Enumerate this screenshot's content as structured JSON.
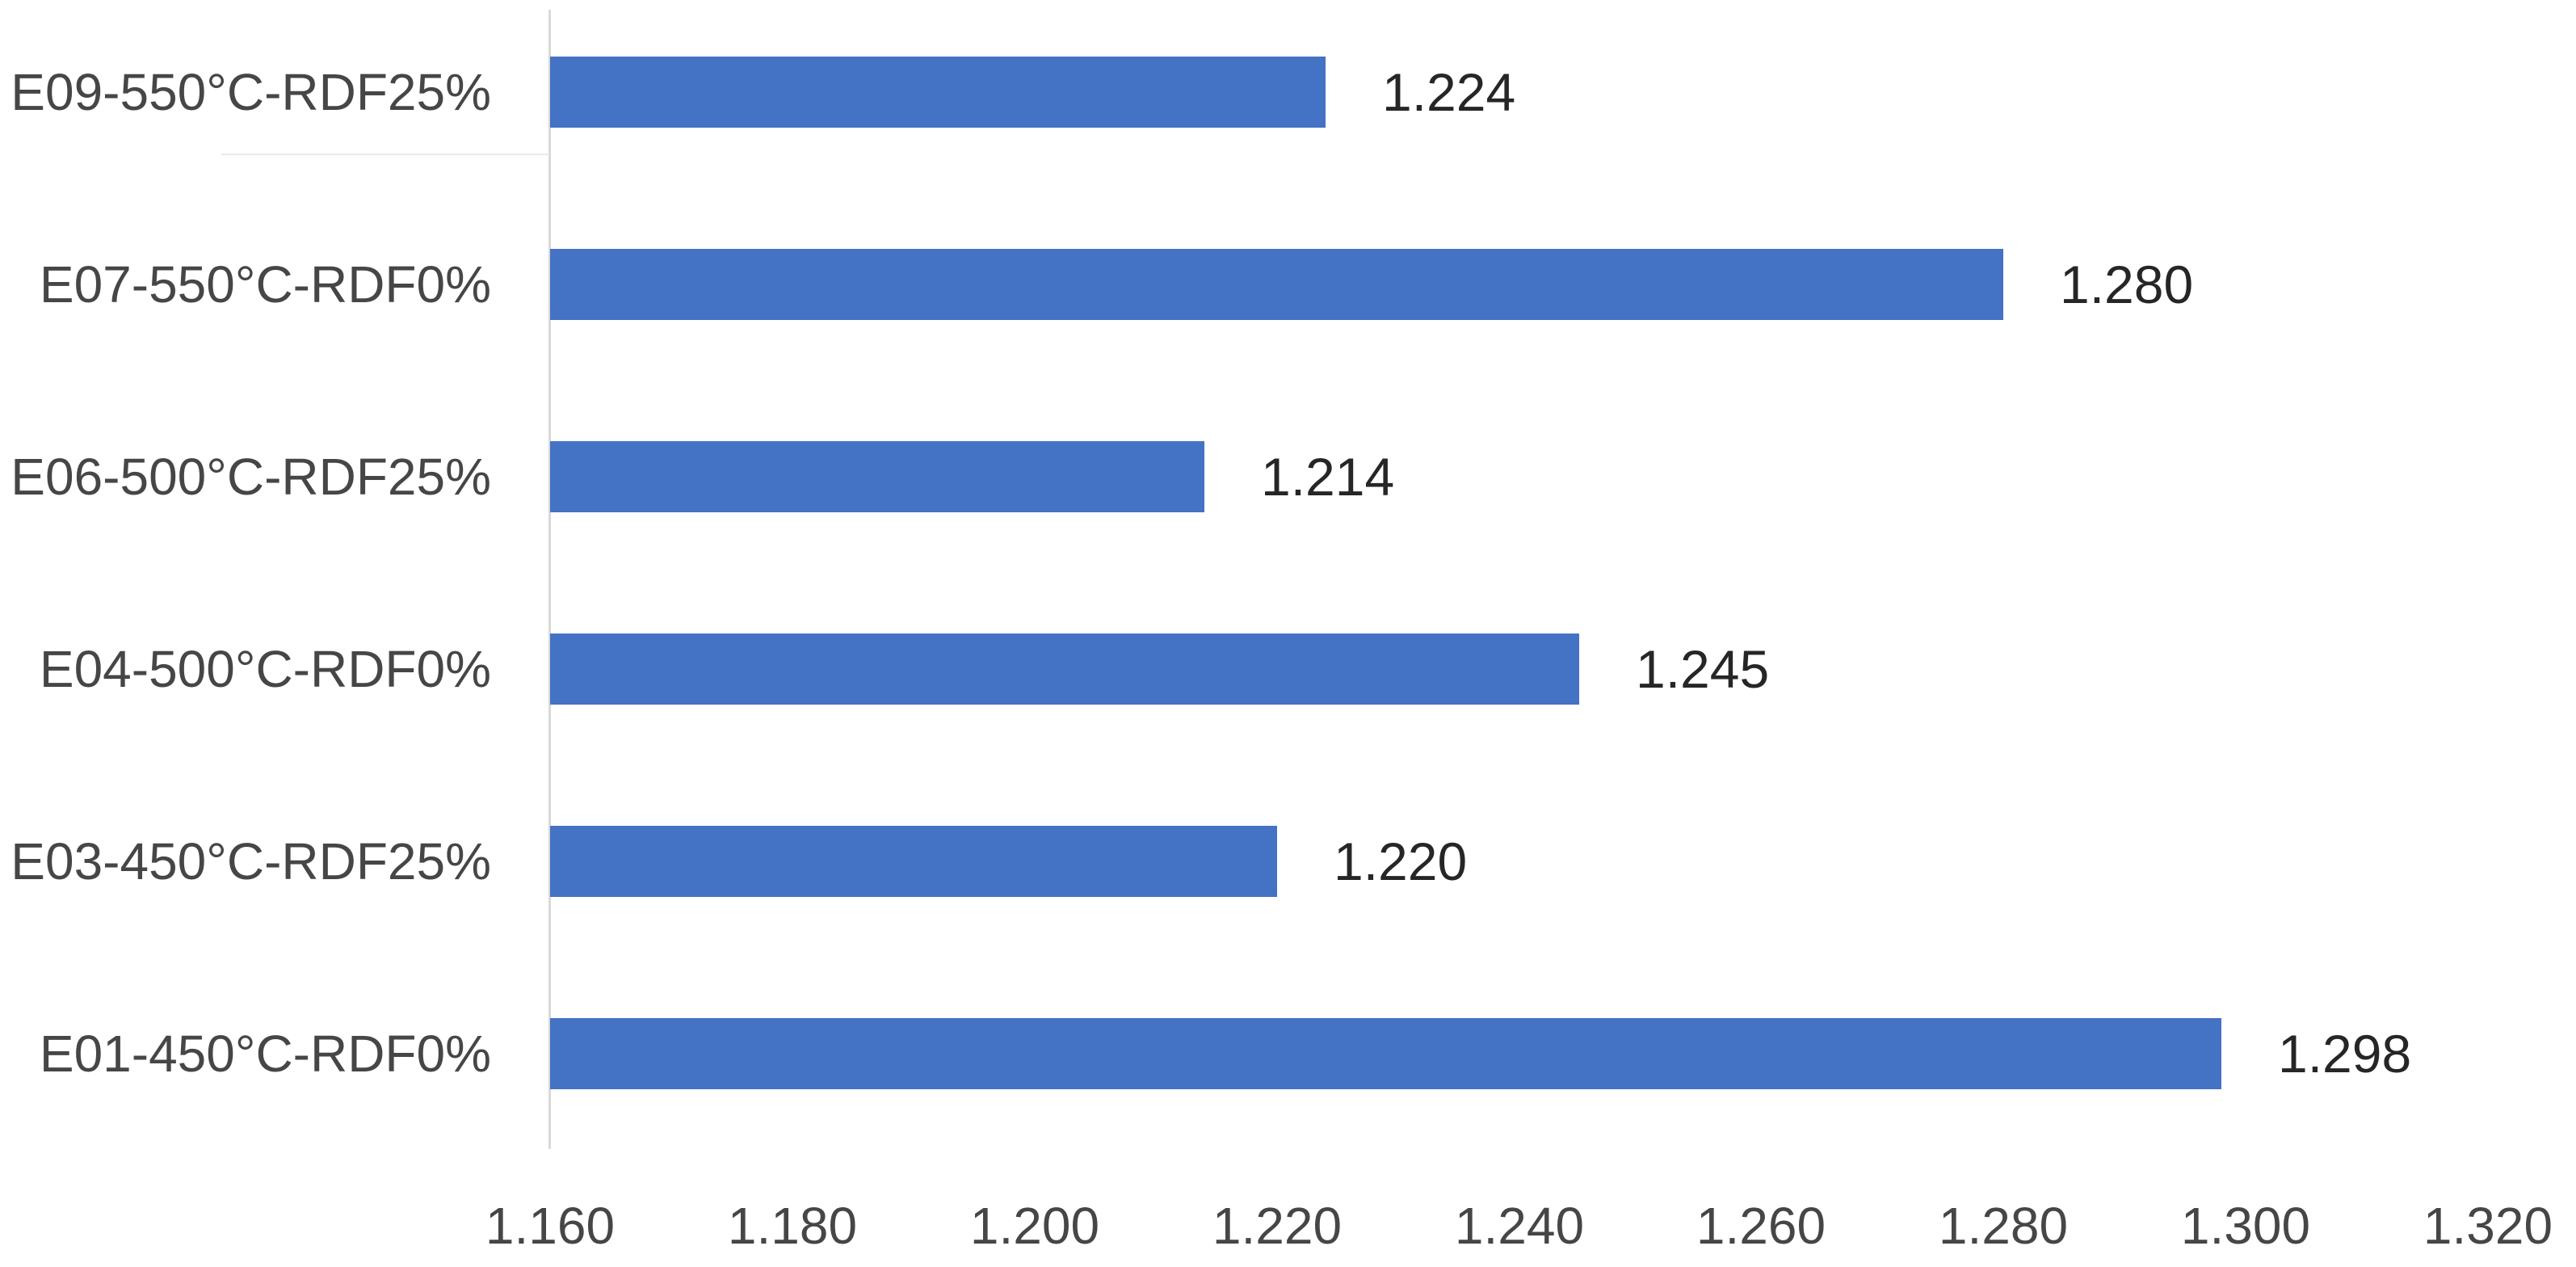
{
  "chart_data": {
    "type": "bar",
    "orientation": "horizontal",
    "title": "",
    "xlabel": "",
    "ylabel": "",
    "categories": [
      "E09-550°C-RDF25%",
      "E07-550°C-RDF0%",
      "E06-500°C-RDF25%",
      "E04-500°C-RDF0%",
      "E03-450°C-RDF25%",
      "E01-450°C-RDF0%"
    ],
    "values": [
      1.224,
      1.28,
      1.214,
      1.245,
      1.22,
      1.298
    ],
    "value_labels": [
      "1.224",
      "1.280",
      "1.214",
      "1.245",
      "1.220",
      "1.298"
    ],
    "x_ticks": [
      "1.160",
      "1.180",
      "1.200",
      "1.220",
      "1.240",
      "1.260",
      "1.280",
      "1.300",
      "1.320"
    ],
    "x_tick_values": [
      1.16,
      1.18,
      1.2,
      1.22,
      1.24,
      1.26,
      1.28,
      1.3,
      1.32
    ],
    "xlim": [
      1.16,
      1.32
    ],
    "grid": false,
    "legend": false,
    "bar_color": "#4472C4",
    "axis_line_color": "#D9D9D9",
    "category_label_color": "#464646",
    "tick_label_color": "#464646",
    "data_label_color": "#262626",
    "background": "#FFFFFF"
  }
}
